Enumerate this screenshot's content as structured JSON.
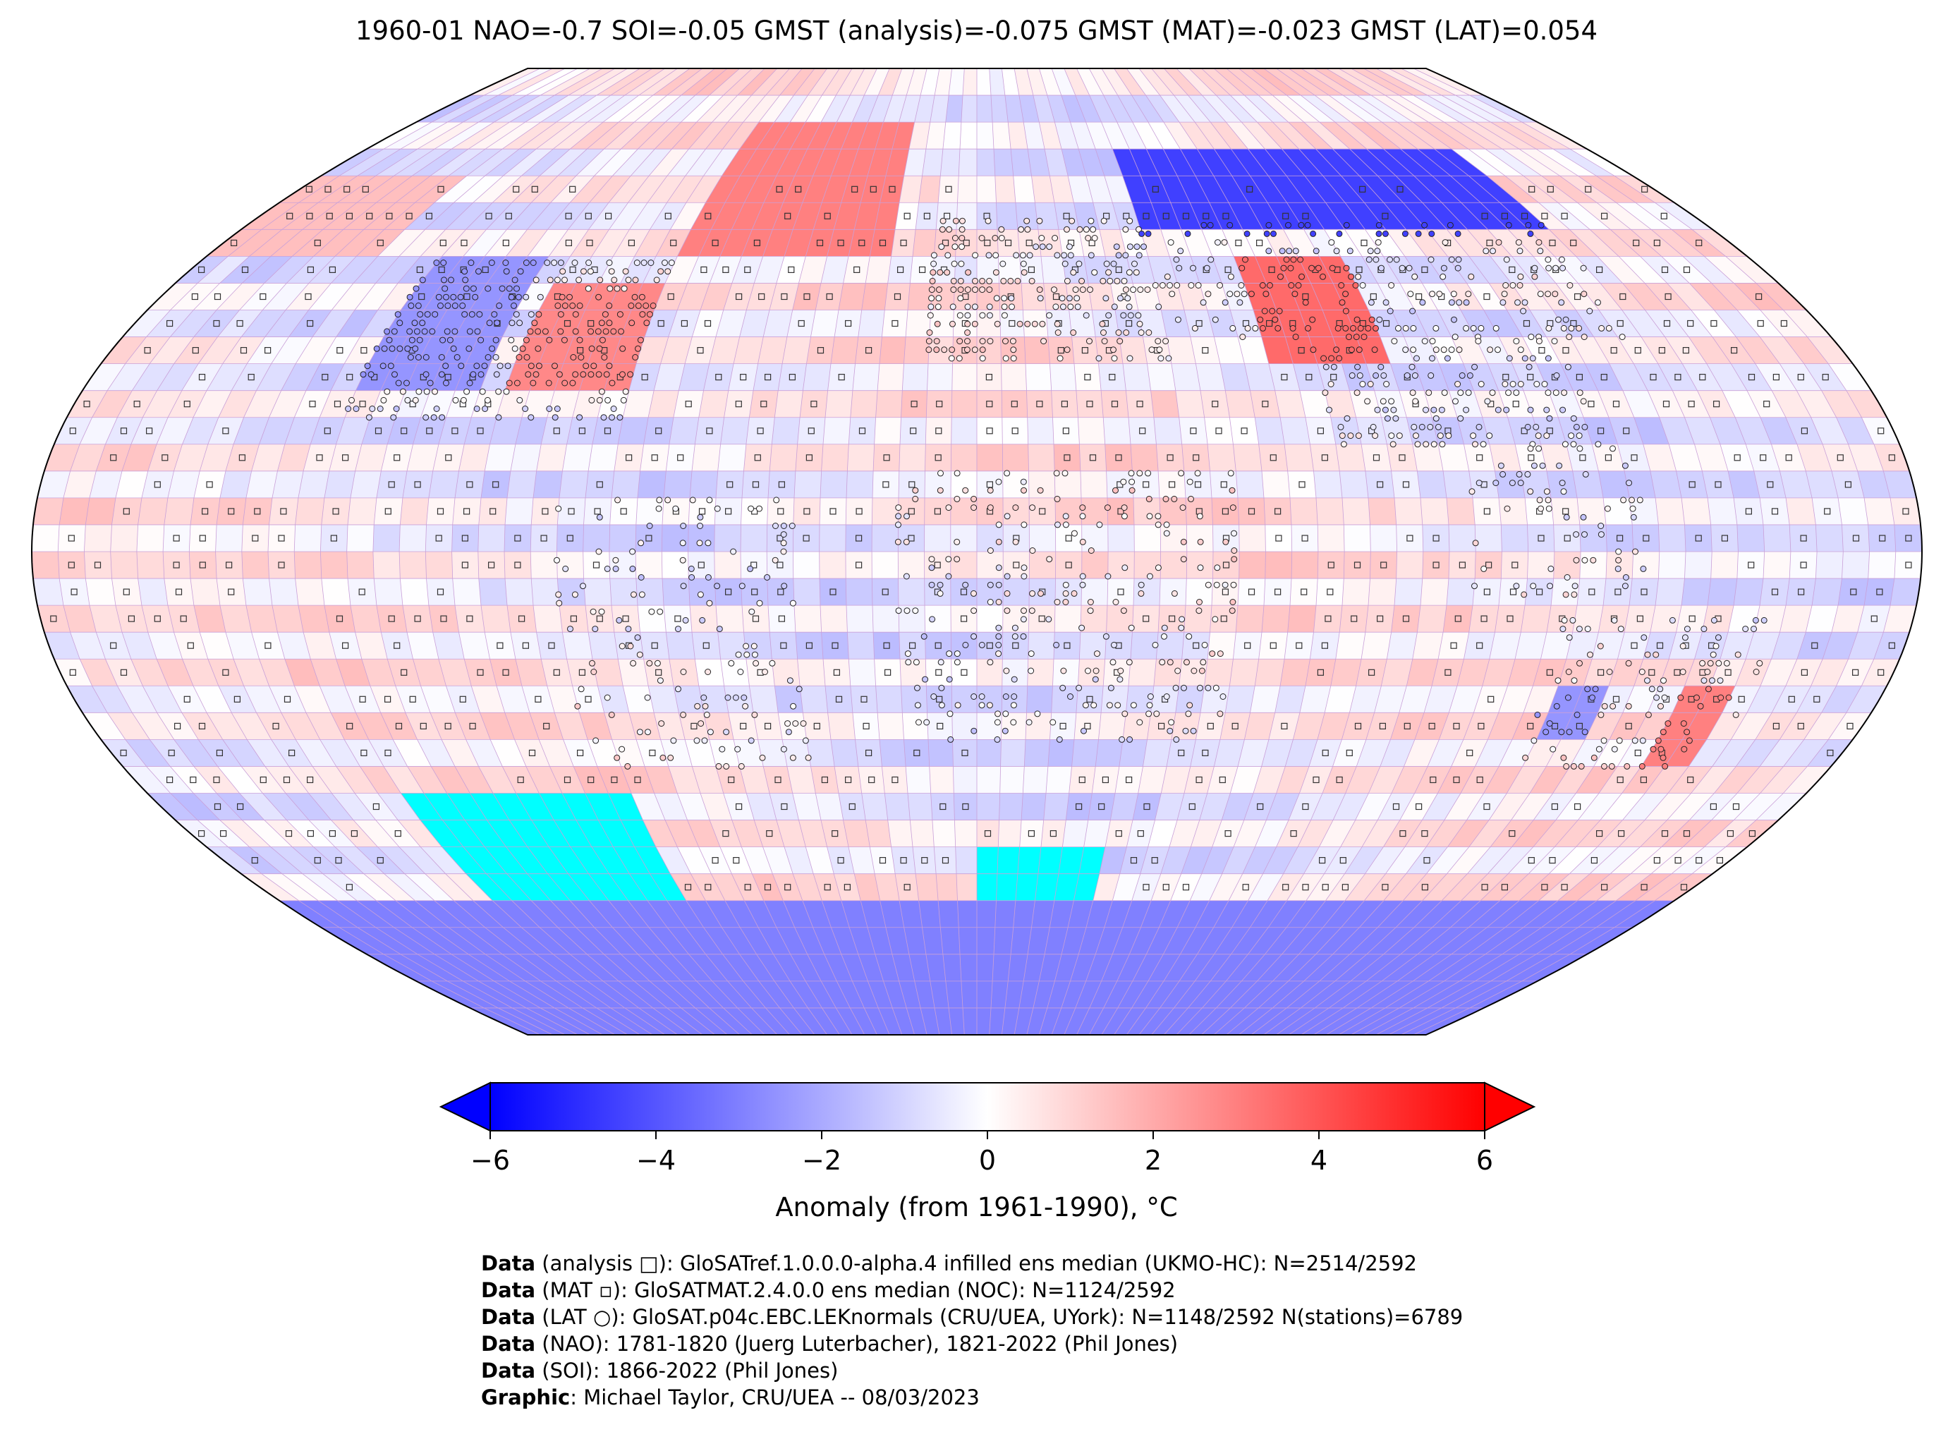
{
  "title": "1960-01 NAO=-0.7 SOI=-0.05 GMST (analysis)=-0.075 GMST (MAT)=-0.023 GMST (LAT)=0.054",
  "colorbar": {
    "label": "Anomaly (from 1961-1990), °C",
    "min": -6,
    "max": 6,
    "ticks": [
      "−6",
      "−4",
      "−2",
      "0",
      "2",
      "4",
      "6"
    ],
    "tick_values": [
      -6,
      -4,
      -2,
      0,
      2,
      4,
      6
    ],
    "extend": "both",
    "colors": {
      "low": "#0000ff",
      "mid": "#ffffff",
      "high": "#ff0000"
    }
  },
  "map": {
    "projection": "Robinson",
    "grid_resolution_deg": 5,
    "grid_line_color": "#c9a0d8",
    "no_data_color": "#00ffff",
    "coastline_color": "#000000",
    "legend_markers": {
      "analysis": "square",
      "MAT": "small-square",
      "LAT": "circle"
    }
  },
  "chart_data": {
    "type": "heatmap",
    "title": "1960-01 NAO=-0.7 SOI=-0.05 GMST (analysis)=-0.075 GMST (MAT)=-0.023 GMST (LAT)=0.054",
    "colorbar_label": "Anomaly (from 1961-1990), °C",
    "value_range": [
      -6,
      6
    ],
    "indices": {
      "NAO": -0.7,
      "SOI": -0.05,
      "GMST_analysis": -0.075,
      "GMST_MAT": -0.023,
      "GMST_LAT": 0.054
    },
    "regions": [
      {
        "lon": [
          40,
          140
        ],
        "lat": [
          58,
          75
        ],
        "anomaly": -4.5
      },
      {
        "lon": [
          60,
          85
        ],
        "lat": [
          35,
          55
        ],
        "anomaly": 3.5
      },
      {
        "lon": [
          -95,
          -70
        ],
        "lat": [
          30,
          48
        ],
        "anomaly": 2.8
      },
      {
        "lon": [
          -70,
          -20
        ],
        "lat": [
          55,
          80
        ],
        "anomaly": 3.0
      },
      {
        "lon": [
          -125,
          -100
        ],
        "lat": [
          30,
          55
        ],
        "anomaly": -2.5
      },
      {
        "lon": [
          -180,
          -140
        ],
        "lat": [
          55,
          72
        ],
        "anomaly": 1.5
      },
      {
        "lon": [
          140,
          152
        ],
        "lat": [
          -40,
          -25
        ],
        "anomaly": 3.0
      },
      {
        "lon": [
          113,
          125
        ],
        "lat": [
          -35,
          -25
        ],
        "anomaly": -2.5
      },
      {
        "lon": [
          -180,
          180
        ],
        "lat": [
          -90,
          -65
        ],
        "anomaly": -3.0
      }
    ],
    "no_data_regions": [
      {
        "lon": [
          -125,
          -75
        ],
        "lat": [
          -65,
          -48
        ]
      },
      {
        "lon": [
          0,
          30
        ],
        "lat": [
          -65,
          -55
        ]
      }
    ]
  },
  "credits": [
    {
      "bold": "Data",
      "text": " (analysis □): GloSATref.1.0.0.0-alpha.4 infilled ens median (UKMO-HC): N=2514/2592"
    },
    {
      "bold": "Data",
      "text": " (MAT ▫): GloSATMAT.2.4.0.0 ens median (NOC): N=1124/2592"
    },
    {
      "bold": "Data",
      "text": " (LAT ○): GloSAT.p04c.EBC.LEKnormals (CRU/UEA, UYork): N=1148/2592 N(stations)=6789"
    },
    {
      "bold": "Data",
      "text": " (NAO): 1781-1820 (Juerg Luterbacher), 1821-2022 (Phil Jones)"
    },
    {
      "bold": "Data",
      "text": " (SOI): 1866-2022 (Phil Jones)"
    },
    {
      "bold": "Graphic",
      "text": ": Michael Taylor, CRU/UEA -- 08/03/2023"
    }
  ]
}
